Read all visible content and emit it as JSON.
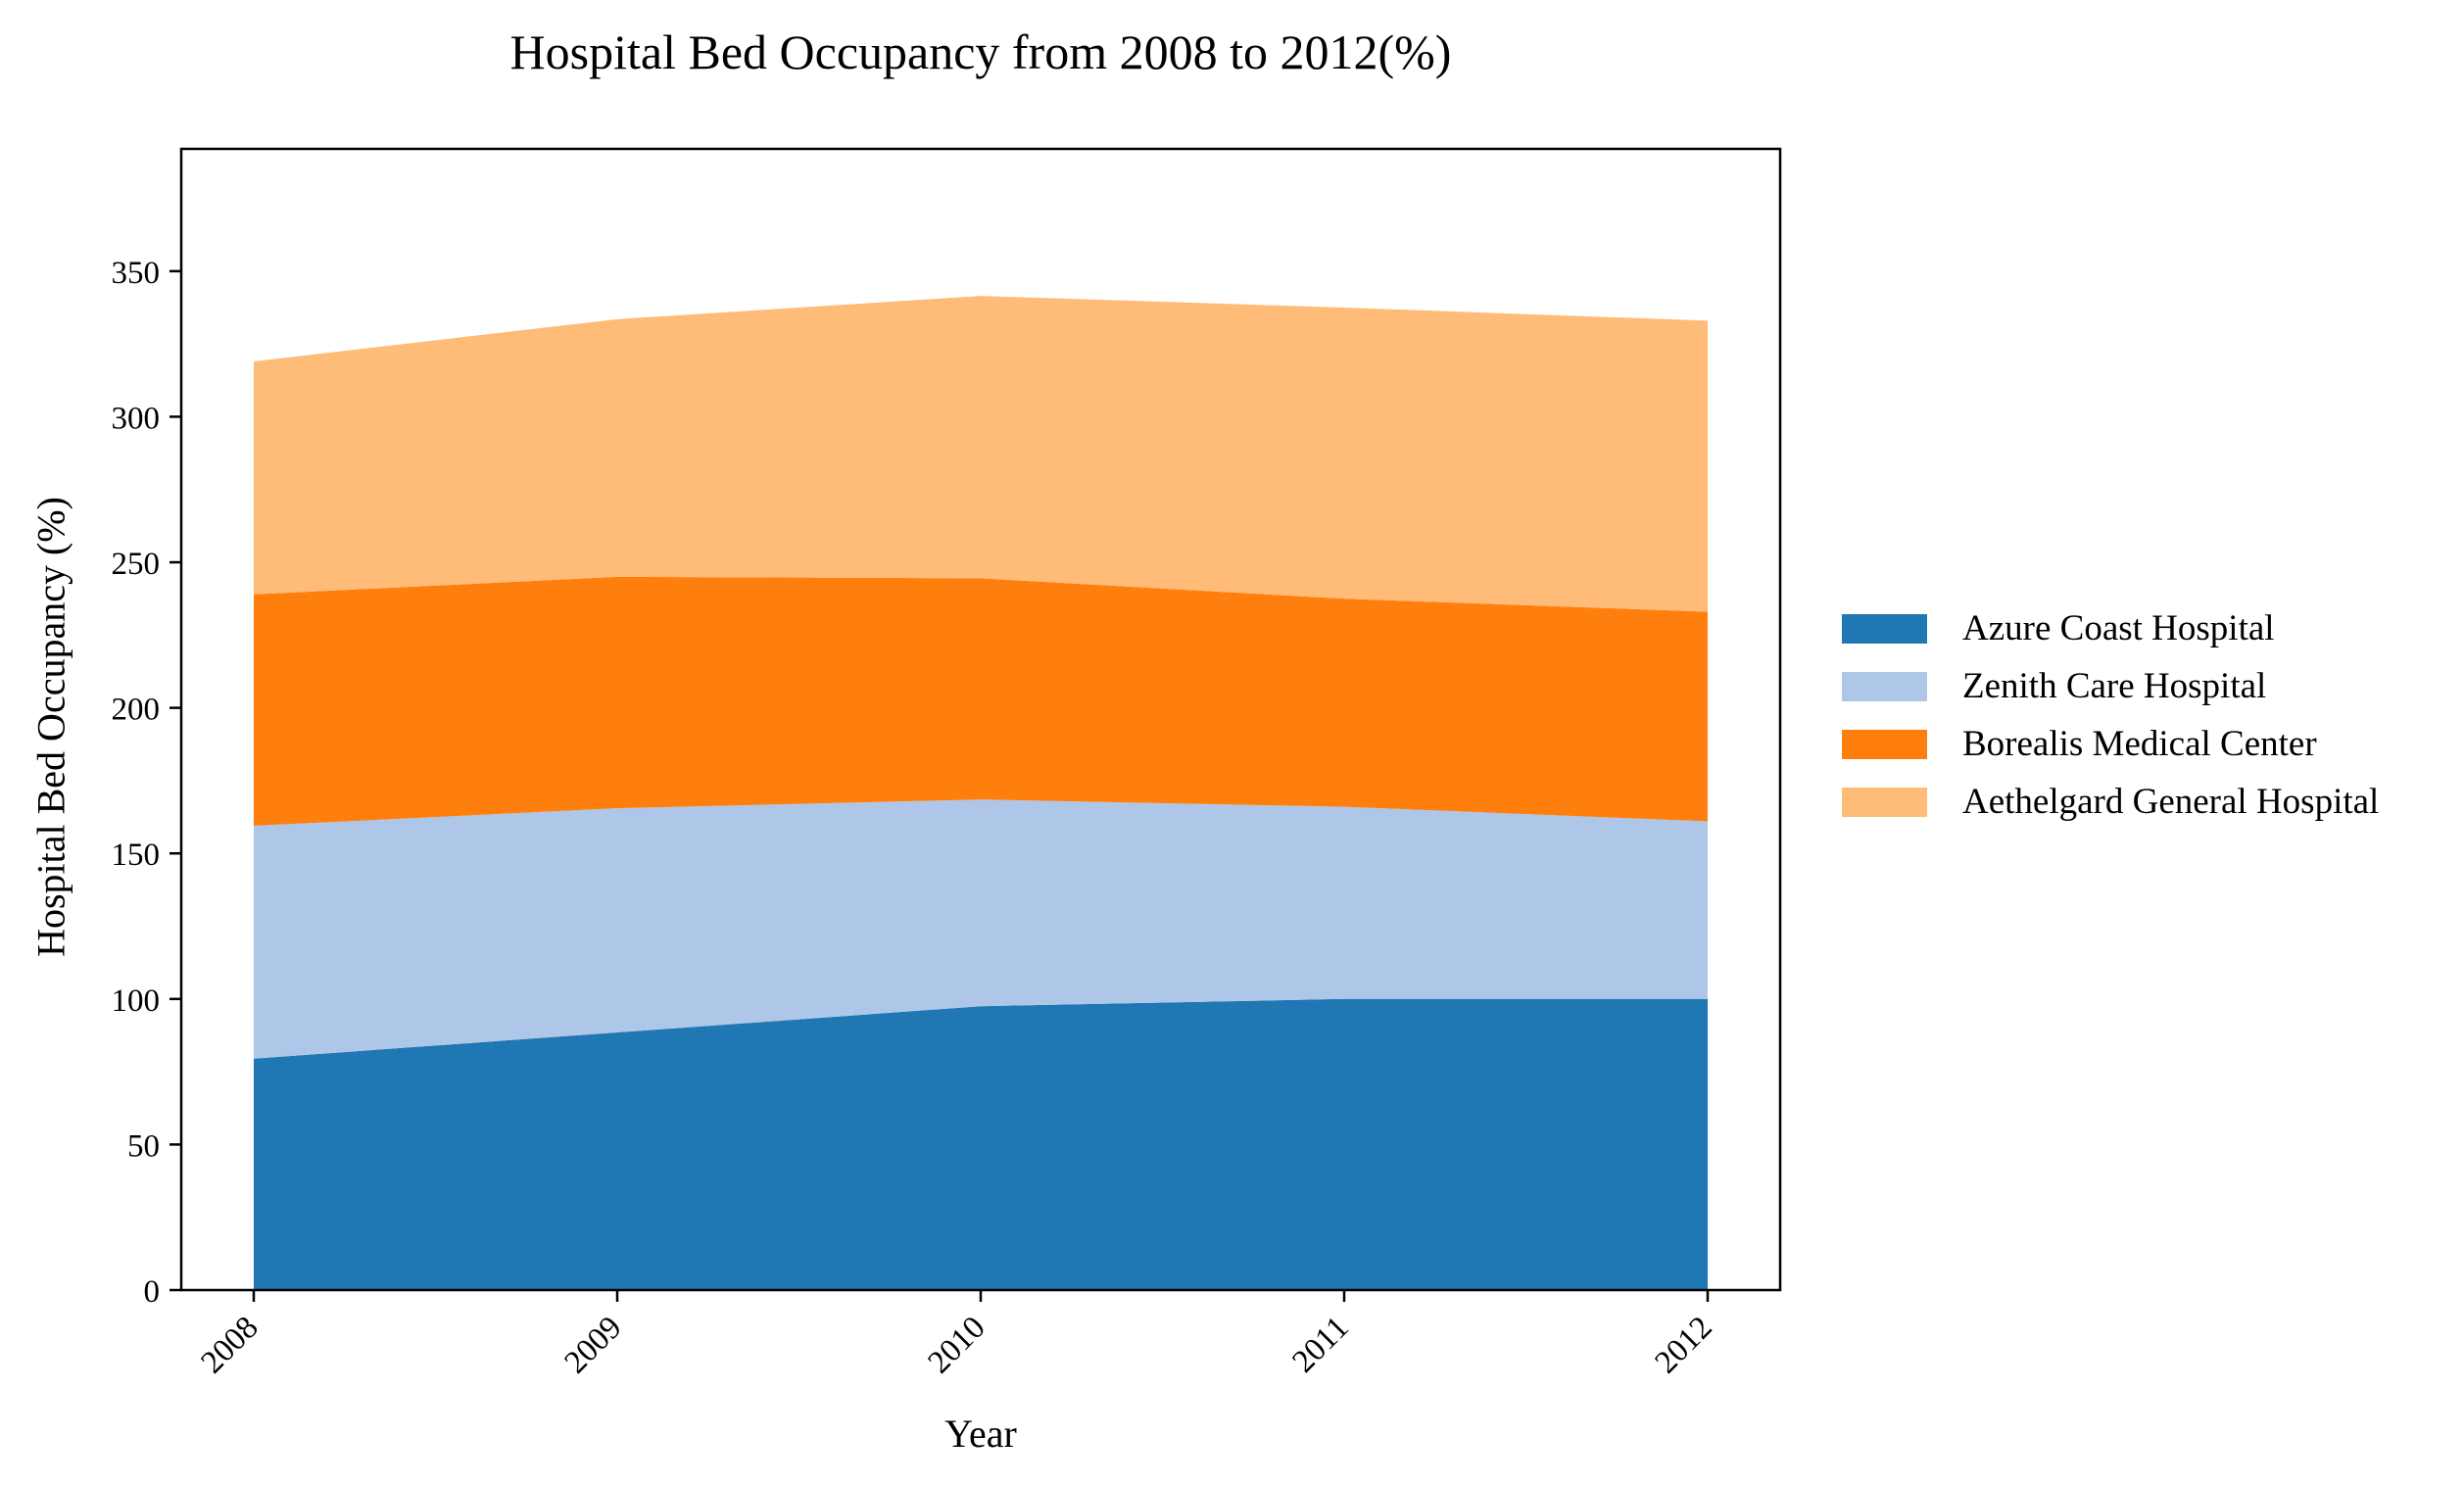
{
  "chart_data": {
    "type": "area",
    "stacked": true,
    "title": "Hospital Bed Occupancy from 2008 to 2012(%)",
    "xlabel": "Year",
    "ylabel": "Hospital Bed Occupancy (%)",
    "categories": [
      "2008",
      "2009",
      "2010",
      "2011",
      "2012"
    ],
    "ylim": [
      0,
      392
    ],
    "yticks": [
      0,
      50,
      100,
      150,
      200,
      250,
      300,
      350
    ],
    "grid": false,
    "legend_position": "right",
    "series": [
      {
        "name": "Azure Coast Hospital",
        "color": "#1f77b4",
        "values": [
          79.5,
          88.5,
          97.5,
          100,
          100
        ]
      },
      {
        "name": "Zenith Care Hospital",
        "color": "#aec7e8",
        "values": [
          80,
          77,
          71,
          66,
          61
        ]
      },
      {
        "name": "Borealis Medical Center",
        "color": "#ff7f0e",
        "values": [
          79.5,
          79.5,
          76,
          71.5,
          72
        ]
      },
      {
        "name": "Aethelgard General Hospital",
        "color": "#ffbb78",
        "values": [
          80,
          88.5,
          97,
          100,
          100
        ]
      }
    ]
  }
}
